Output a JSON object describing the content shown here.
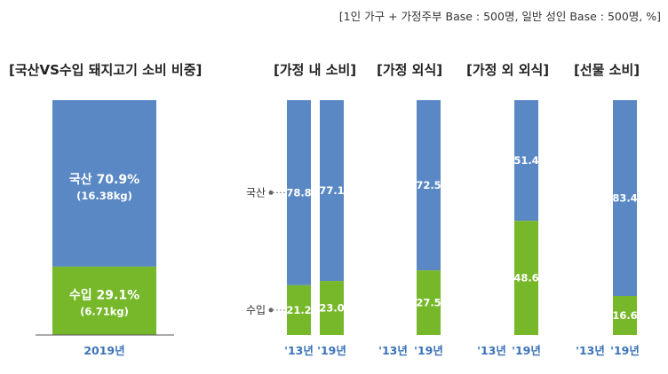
{
  "note": "[1인 가구 + 가정주부 Base : 500명, 일반 성인 Base : 500명, %]",
  "colors": {
    "domestic": "#5a88c4",
    "imported": "#76b82a",
    "tick": "#3b73b9"
  },
  "chart_data": [
    {
      "type": "bar",
      "stacked": true,
      "title": "[국산VS수입 돼지고기 소비 비중]",
      "categories": [
        "2019년"
      ],
      "series": [
        {
          "name": "국산",
          "values": [
            70.9
          ],
          "amount": "(16.38kg)"
        },
        {
          "name": "수입",
          "values": [
            29.1
          ],
          "amount": "(6.71kg)"
        }
      ],
      "ylim": [
        0,
        100
      ]
    },
    {
      "type": "bar",
      "stacked": true,
      "side_labels": [
        "국산",
        "수입"
      ],
      "groups": [
        {
          "title": "[가정 내 소비]",
          "categories": [
            "'13년",
            "'19년"
          ],
          "series": [
            {
              "name": "국산",
              "values": [
                78.8,
                77.1
              ]
            },
            {
              "name": "수입",
              "values": [
                21.2,
                23.0
              ]
            }
          ]
        },
        {
          "title": "[가정 외식]",
          "categories": [
            "'13년",
            "'19년"
          ],
          "series": [
            {
              "name": "국산",
              "values": [
                null,
                72.5
              ]
            },
            {
              "name": "수입",
              "values": [
                null,
                27.5
              ]
            }
          ]
        },
        {
          "title": "[가정 외 외식]",
          "categories": [
            "'13년",
            "'19년"
          ],
          "series": [
            {
              "name": "국산",
              "values": [
                null,
                51.4
              ]
            },
            {
              "name": "수입",
              "values": [
                null,
                48.6
              ]
            }
          ]
        },
        {
          "title": "[선물 소비]",
          "categories": [
            "'13년",
            "'19년"
          ],
          "series": [
            {
              "name": "국산",
              "values": [
                null,
                83.4
              ]
            },
            {
              "name": "수입",
              "values": [
                null,
                16.6
              ]
            }
          ]
        }
      ],
      "ylim": [
        0,
        100
      ]
    }
  ]
}
